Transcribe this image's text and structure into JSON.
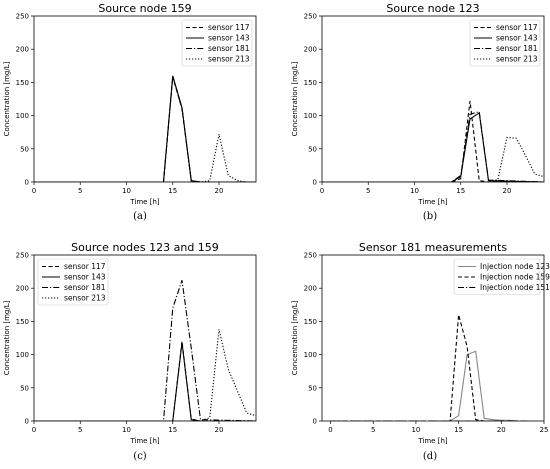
{
  "chart_data": [
    {
      "type": "line",
      "panel_label": "(a)",
      "title": "Source node 159",
      "xlabel": "Time [h]",
      "ylabel": "Concentration [mg/L]",
      "xlim": [
        0,
        24
      ],
      "ylim": [
        0,
        250
      ],
      "xticks": [
        0,
        5,
        10,
        15,
        20
      ],
      "yticks": [
        0,
        50,
        100,
        150,
        200,
        250
      ],
      "legend_position": "top-right",
      "grid": false,
      "series": [
        {
          "name": "sensor 117",
          "style": "dashed",
          "color": "#000000",
          "x": [
            0,
            14,
            15,
            16,
            17,
            18,
            24
          ],
          "y": [
            0,
            0,
            158,
            110,
            2,
            0,
            0
          ]
        },
        {
          "name": "sensor 143",
          "style": "solid",
          "color": "#000000",
          "x": [
            0,
            14,
            15,
            16,
            17,
            18,
            24
          ],
          "y": [
            0,
            0,
            160,
            112,
            2,
            0,
            0
          ]
        },
        {
          "name": "sensor 181",
          "style": "dashdot",
          "color": "#000000",
          "x": [
            0,
            14,
            15,
            16,
            17,
            18,
            24
          ],
          "y": [
            0,
            0,
            159,
            111,
            2,
            0,
            0
          ]
        },
        {
          "name": "sensor 213",
          "style": "dotted",
          "color": "#000000",
          "x": [
            0,
            18,
            19,
            20,
            21,
            22,
            23,
            24
          ],
          "y": [
            0,
            0,
            2,
            72,
            10,
            2,
            0,
            0
          ]
        }
      ]
    },
    {
      "type": "line",
      "panel_label": "(b)",
      "title": "Source node 123",
      "xlabel": "Time [h]",
      "ylabel": "Concentration [mg/L]",
      "xlim": [
        0,
        24
      ],
      "ylim": [
        0,
        250
      ],
      "xticks": [
        0,
        5,
        10,
        15,
        20
      ],
      "yticks": [
        0,
        50,
        100,
        150,
        200,
        250
      ],
      "legend_position": "top-right",
      "grid": false,
      "series": [
        {
          "name": "sensor 117",
          "style": "dashed",
          "color": "#000000",
          "x": [
            0,
            14,
            15,
            16,
            17,
            18,
            24
          ],
          "y": [
            0,
            0,
            5,
            122,
            2,
            0,
            0
          ]
        },
        {
          "name": "sensor 143",
          "style": "solid",
          "color": "#000000",
          "x": [
            0,
            14,
            15,
            16,
            17,
            18,
            24
          ],
          "y": [
            0,
            0,
            8,
            95,
            104,
            2,
            0
          ]
        },
        {
          "name": "sensor 181",
          "style": "dashdot",
          "color": "#000000",
          "x": [
            0,
            14,
            15,
            16,
            17,
            18,
            24
          ],
          "y": [
            0,
            0,
            10,
            102,
            106,
            3,
            0
          ]
        },
        {
          "name": "sensor 213",
          "style": "dotted",
          "color": "#000000",
          "x": [
            0,
            18,
            19,
            20,
            21,
            22,
            23,
            24
          ],
          "y": [
            0,
            0,
            3,
            67,
            66,
            40,
            12,
            8
          ]
        }
      ]
    },
    {
      "type": "line",
      "panel_label": "(c)",
      "title": "Source nodes 123 and 159",
      "xlabel": "Time [h]",
      "ylabel": "Concentration [mg/L]",
      "xlim": [
        0,
        24
      ],
      "ylim": [
        0,
        250
      ],
      "xticks": [
        0,
        5,
        10,
        15,
        20
      ],
      "yticks": [
        0,
        50,
        100,
        150,
        200,
        250
      ],
      "legend_position": "top-left",
      "grid": false,
      "series": [
        {
          "name": "sensor 117",
          "style": "dashed",
          "color": "#000000",
          "x": [
            0,
            15,
            16,
            17,
            18,
            24
          ],
          "y": [
            0,
            0,
            120,
            3,
            0,
            0
          ]
        },
        {
          "name": "sensor 143",
          "style": "solid",
          "color": "#000000",
          "x": [
            0,
            15,
            16,
            17,
            18,
            24
          ],
          "y": [
            0,
            0,
            118,
            2,
            0,
            0
          ]
        },
        {
          "name": "sensor 181",
          "style": "dashdot",
          "color": "#000000",
          "x": [
            0,
            14,
            15,
            16,
            17,
            18,
            24
          ],
          "y": [
            0,
            0,
            170,
            212,
            110,
            2,
            0
          ]
        },
        {
          "name": "sensor 213",
          "style": "dotted",
          "color": "#000000",
          "x": [
            0,
            18,
            19,
            20,
            21,
            22,
            23,
            24
          ],
          "y": [
            0,
            0,
            5,
            138,
            78,
            45,
            12,
            8
          ]
        }
      ]
    },
    {
      "type": "line",
      "panel_label": "(d)",
      "title": "Sensor 181 measurements",
      "xlabel": "Time [h]",
      "ylabel": "Concentration [mg/L]",
      "xlim": [
        -1,
        25
      ],
      "ylim": [
        0,
        250
      ],
      "xticks": [
        0,
        5,
        10,
        15,
        20,
        25
      ],
      "yticks": [
        0,
        50,
        100,
        150,
        200,
        250
      ],
      "legend_position": "top-right",
      "grid": false,
      "series": [
        {
          "name": "Injection node 123",
          "style": "solid",
          "color": "#888888",
          "x": [
            0,
            14,
            15,
            16,
            17,
            18,
            19,
            20,
            21,
            22,
            23
          ],
          "y": [
            0,
            0,
            8,
            100,
            105,
            4,
            2,
            1,
            1,
            0,
            0
          ]
        },
        {
          "name": "Injection node 159",
          "style": "dashed",
          "color": "#000000",
          "x": [
            0,
            14,
            15,
            16,
            17,
            18,
            23
          ],
          "y": [
            0,
            0,
            160,
            112,
            2,
            0,
            0
          ]
        },
        {
          "name": "Injection node 151",
          "style": "dashdot",
          "color": "#000000",
          "x": [
            0,
            23
          ],
          "y": [
            0,
            0
          ]
        }
      ]
    }
  ]
}
